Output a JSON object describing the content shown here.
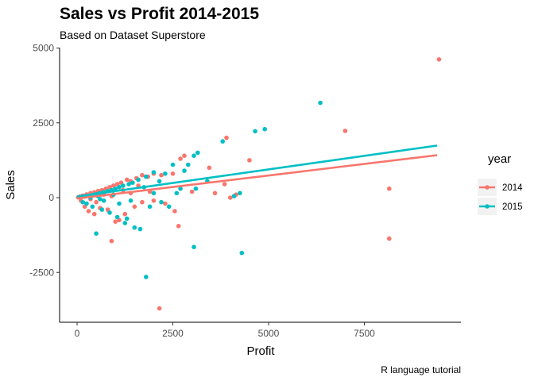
{
  "chart_data": {
    "type": "scatter",
    "title": "Sales vs Profit 2014-2015",
    "subtitle": "Based on Dataset Superstore",
    "xlabel": "Profit",
    "ylabel": "Sales",
    "caption": "R language tutorial",
    "xlim": [
      -400,
      9700
    ],
    "ylim": [
      -4200,
      5100
    ],
    "x_ticks": [
      0,
      2500,
      5000,
      7500
    ],
    "y_ticks": [
      5000,
      2500,
      0,
      -2500
    ],
    "grid": false,
    "legend": {
      "title": "year",
      "position": "right"
    },
    "series": [
      {
        "name": "2014",
        "color": "#F8766D",
        "trend": [
          [
            0,
            -30
          ],
          [
            9400,
            1420
          ]
        ],
        "points": [
          [
            9450,
            4620
          ],
          [
            7000,
            2230
          ],
          [
            3900,
            2000
          ],
          [
            4500,
            1250
          ],
          [
            3450,
            1000
          ],
          [
            2800,
            1400
          ],
          [
            2700,
            1300
          ],
          [
            2500,
            800
          ],
          [
            2200,
            750
          ],
          [
            2000,
            800
          ],
          [
            1850,
            700
          ],
          [
            1700,
            750
          ],
          [
            1550,
            650
          ],
          [
            1400,
            550
          ],
          [
            1300,
            600
          ],
          [
            1150,
            500
          ],
          [
            1050,
            450
          ],
          [
            950,
            400
          ],
          [
            850,
            350
          ],
          [
            750,
            300
          ],
          [
            650,
            250
          ],
          [
            550,
            220
          ],
          [
            450,
            180
          ],
          [
            350,
            150
          ],
          [
            250,
            110
          ],
          [
            150,
            70
          ],
          [
            80,
            40
          ],
          [
            30,
            10
          ],
          [
            3600,
            150
          ],
          [
            3850,
            450
          ],
          [
            4000,
            0
          ],
          [
            4150,
            100
          ],
          [
            2650,
            -950
          ],
          [
            2150,
            -3700
          ],
          [
            900,
            -1450
          ],
          [
            1250,
            -550
          ],
          [
            1100,
            -750
          ],
          [
            1000,
            -800
          ],
          [
            800,
            -400
          ],
          [
            600,
            -350
          ],
          [
            450,
            -550
          ],
          [
            300,
            -450
          ],
          [
            200,
            -300
          ],
          [
            100,
            -100
          ],
          [
            1500,
            -300
          ],
          [
            1700,
            -150
          ],
          [
            2000,
            -100
          ],
          [
            2300,
            -200
          ],
          [
            2550,
            -450
          ],
          [
            3000,
            200
          ],
          [
            8150,
            300
          ],
          [
            8150,
            -1370
          ],
          [
            1400,
            150
          ],
          [
            1600,
            400
          ],
          [
            1900,
            200
          ],
          [
            700,
            100
          ],
          [
            500,
            -150
          ],
          [
            900,
            50
          ],
          [
            1200,
            250
          ],
          [
            350,
            -50
          ]
        ]
      },
      {
        "name": "2015",
        "color": "#00BFC4",
        "trend": [
          [
            0,
            40
          ],
          [
            9400,
            1740
          ]
        ],
        "points": [
          [
            6350,
            3170
          ],
          [
            4900,
            2290
          ],
          [
            4650,
            2220
          ],
          [
            3800,
            1880
          ],
          [
            3150,
            1500
          ],
          [
            3050,
            1400
          ],
          [
            2900,
            1100
          ],
          [
            2800,
            900
          ],
          [
            2500,
            1100
          ],
          [
            2300,
            800
          ],
          [
            2000,
            850
          ],
          [
            1800,
            700
          ],
          [
            1600,
            600
          ],
          [
            1450,
            500
          ],
          [
            1350,
            450
          ],
          [
            1200,
            400
          ],
          [
            1100,
            350
          ],
          [
            1000,
            300
          ],
          [
            900,
            250
          ],
          [
            800,
            220
          ],
          [
            700,
            180
          ],
          [
            600,
            150
          ],
          [
            500,
            120
          ],
          [
            400,
            90
          ],
          [
            300,
            60
          ],
          [
            200,
            40
          ],
          [
            100,
            20
          ],
          [
            4250,
            150
          ],
          [
            4100,
            50
          ],
          [
            4300,
            -1850
          ],
          [
            3050,
            -1650
          ],
          [
            1800,
            -2650
          ],
          [
            1650,
            -1050
          ],
          [
            1500,
            -1000
          ],
          [
            1250,
            -850
          ],
          [
            1050,
            -650
          ],
          [
            850,
            -500
          ],
          [
            650,
            -400
          ],
          [
            500,
            -1200
          ],
          [
            1300,
            -700
          ],
          [
            400,
            -300
          ],
          [
            250,
            -200
          ],
          [
            150,
            -150
          ],
          [
            2400,
            -300
          ],
          [
            2200,
            -150
          ],
          [
            1900,
            -300
          ],
          [
            2000,
            150
          ],
          [
            3100,
            300
          ],
          [
            3400,
            550
          ],
          [
            2700,
            300
          ],
          [
            1400,
            -100
          ],
          [
            1100,
            -200
          ],
          [
            700,
            -100
          ],
          [
            550,
            50
          ],
          [
            950,
            100
          ],
          [
            1750,
            350
          ],
          [
            2150,
            550
          ],
          [
            350,
            0
          ],
          [
            600,
            -50
          ],
          [
            2600,
            150
          ]
        ]
      }
    ]
  }
}
